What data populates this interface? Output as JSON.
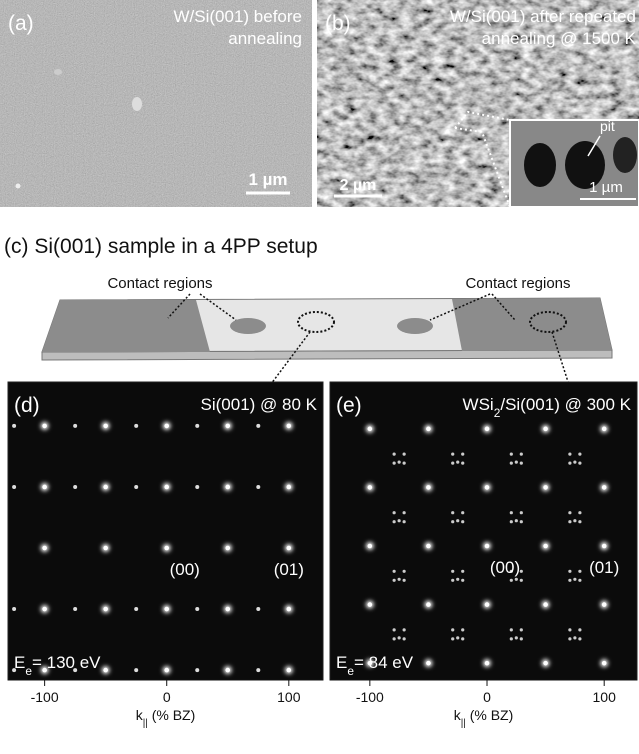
{
  "panel_a": {
    "label": "(a)",
    "caption": [
      "W/Si(001) before",
      "annealing"
    ],
    "scale_bar": "1 µm"
  },
  "panel_b": {
    "label": "(b)",
    "caption": [
      "W/Si(001) after repeated",
      "annealing @ 1500 K"
    ],
    "scale_bar": "2 µm",
    "inset_annotation": "pit",
    "inset_scale_bar": "1 µm"
  },
  "panel_c": {
    "label": "(c)",
    "title": "Si(001) sample in a 4PP setup",
    "contact_labels": [
      "Contact regions",
      "Contact regions"
    ]
  },
  "panel_d": {
    "label": "(d)",
    "title": {
      "prefix": "Si(001) @ 80 K"
    },
    "spot_labels": [
      "(00)",
      "(01)"
    ],
    "energy": {
      "symbol": "E",
      "subscript": "e",
      "text": "= 130 eV"
    },
    "xlim": [
      -130,
      128
    ],
    "xticks": [
      -100,
      0,
      100
    ],
    "xlabel": {
      "symbol": "k",
      "subscript": "||",
      "text": " (% BZ)"
    }
  },
  "panel_e": {
    "label": "(e)",
    "title": {
      "prefix": "WSi",
      "subscript": "2",
      "suffix": "/Si(001) @ 300 K"
    },
    "spot_labels": [
      "(00)",
      "(01)"
    ],
    "energy": {
      "symbol": "E",
      "subscript": "e",
      "text": "= 84 eV"
    },
    "xlim": [
      -134,
      128
    ],
    "xticks": [
      -100,
      0,
      100
    ],
    "xlabel": {
      "symbol": "k",
      "subscript": "||",
      "text": " (% BZ)"
    }
  }
}
